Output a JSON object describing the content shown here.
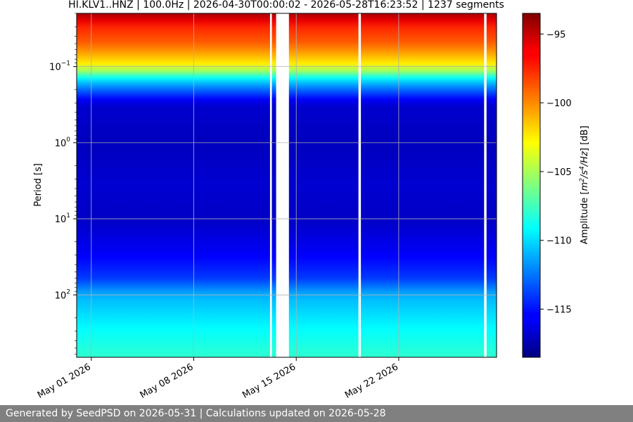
{
  "chart_data": {
    "type": "heatmap",
    "title": "HI.KLV1..HNZ | 100.0Hz | 2026-04-30T00:00:02 - 2026-05-28T16:23:52 | 1237 segments",
    "ylabel": "Period [s]",
    "y_scale": "log",
    "y_inverted": true,
    "ylim": [
      0.02,
      660
    ],
    "y_ticks": [
      {
        "value": 0.1,
        "base": "10",
        "exp": "−1"
      },
      {
        "value": 1,
        "base": "10",
        "exp": "0"
      },
      {
        "value": 10,
        "base": "10",
        "exp": "1"
      },
      {
        "value": 100,
        "base": "10",
        "exp": "2"
      }
    ],
    "xlim": [
      "2026-04-30T00:00:02",
      "2026-05-28T16:23:52"
    ],
    "x_ticks": [
      "May 01 2026",
      "May 08 2026",
      "May 15 2026",
      "May 22 2026"
    ],
    "x_tick_dates": [
      "2026-05-01",
      "2026-05-08",
      "2026-05-15",
      "2026-05-22"
    ],
    "grid": true,
    "colormap": "jet",
    "colorbar": {
      "label_main": "Amplitude [",
      "label_m": "m",
      "label_sup1": "2",
      "label_mid": "/s",
      "label_sup2": "4",
      "label_hz": "/Hz",
      "label_end": "] [dB]",
      "min": -118.5,
      "max": -93.5,
      "ticks": [
        "−95",
        "−100",
        "−105",
        "−110",
        "−115"
      ],
      "tick_values": [
        -95,
        -100,
        -105,
        -110,
        -115
      ]
    },
    "data_gaps": [
      {
        "start": "2026-05-13T05:00:00",
        "end": "2026-05-13T08:00:00"
      },
      {
        "start": "2026-05-13T15:00:00",
        "end": "2026-05-14T12:00:00"
      },
      {
        "start": "2026-05-19T06:00:00",
        "end": "2026-05-19T10:00:00"
      },
      {
        "start": "2026-05-27T20:00:00",
        "end": "2026-05-28T00:00:00"
      }
    ],
    "profile": [
      {
        "period": 0.02,
        "amplitude_db": -94.5
      },
      {
        "period": 0.03,
        "amplitude_db": -97.5
      },
      {
        "period": 0.05,
        "amplitude_db": -99
      },
      {
        "period": 0.1,
        "amplitude_db": -103
      },
      {
        "period": 0.15,
        "amplitude_db": -110
      },
      {
        "period": 0.3,
        "amplitude_db": -116.5
      },
      {
        "period": 1,
        "amplitude_db": -117
      },
      {
        "period": 3.5,
        "amplitude_db": -116.5
      },
      {
        "period": 10,
        "amplitude_db": -116.8
      },
      {
        "period": 30,
        "amplitude_db": -115.5
      },
      {
        "period": 60,
        "amplitude_db": -114
      },
      {
        "period": 100,
        "amplitude_db": -111
      },
      {
        "period": 300,
        "amplitude_db": -109
      },
      {
        "period": 660,
        "amplitude_db": -108
      }
    ]
  },
  "footer": {
    "text": "Generated by SeedPSD on 2026-05-31 | Calculations updated on 2026-05-28"
  }
}
